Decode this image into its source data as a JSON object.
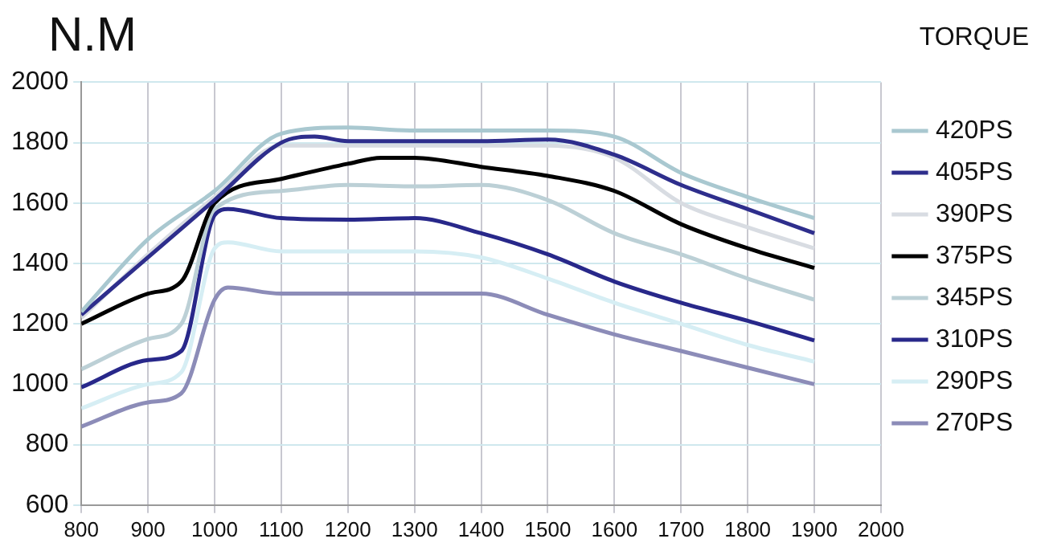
{
  "chart_data": {
    "type": "line",
    "title": "TORQUE",
    "ylabel": "N.M",
    "xlim": [
      800,
      2000
    ],
    "xticks": [
      800,
      900,
      1000,
      1100,
      1200,
      1300,
      1400,
      1500,
      1600,
      1700,
      1800,
      1900,
      2000
    ],
    "ylim": [
      600,
      2000
    ],
    "yticks": [
      600,
      800,
      1000,
      1200,
      1400,
      1600,
      1800,
      2000
    ],
    "grid": true,
    "legend": "right",
    "marker": "none",
    "line_style": "solid",
    "series": [
      {
        "name": "420PS",
        "color": "#a9c8d0",
        "x": [
          800,
          900,
          1000,
          1100,
          1200,
          1300,
          1400,
          1500,
          1600,
          1700,
          1800,
          1900
        ],
        "values": [
          1240,
          1480,
          1640,
          1830,
          1850,
          1840,
          1840,
          1840,
          1820,
          1700,
          1620,
          1550
        ]
      },
      {
        "name": "405PS",
        "color": "#2e2e8c",
        "x": [
          800,
          900,
          1000,
          1100,
          1150,
          1200,
          1300,
          1400,
          1500,
          1600,
          1700,
          1800,
          1900
        ],
        "values": [
          1230,
          1420,
          1610,
          1800,
          1820,
          1805,
          1805,
          1805,
          1810,
          1760,
          1660,
          1580,
          1500
        ]
      },
      {
        "name": "390PS",
        "color": "#d8dce2",
        "x": [
          800,
          900,
          1000,
          1100,
          1200,
          1300,
          1400,
          1500,
          1600,
          1700,
          1800,
          1900
        ],
        "values": [
          1220,
          1430,
          1620,
          1790,
          1790,
          1790,
          1790,
          1790,
          1750,
          1600,
          1520,
          1450
        ]
      },
      {
        "name": "375PS",
        "color": "#000000",
        "x": [
          800,
          900,
          950,
          1000,
          1100,
          1200,
          1250,
          1300,
          1400,
          1500,
          1600,
          1700,
          1800,
          1900
        ],
        "values": [
          1200,
          1300,
          1340,
          1600,
          1680,
          1730,
          1750,
          1750,
          1720,
          1690,
          1640,
          1530,
          1450,
          1385
        ]
      },
      {
        "name": "345PS",
        "color": "#bcd0d6",
        "x": [
          800,
          900,
          950,
          1000,
          1100,
          1200,
          1300,
          1400,
          1500,
          1600,
          1700,
          1800,
          1900
        ],
        "values": [
          1050,
          1150,
          1200,
          1580,
          1640,
          1660,
          1655,
          1660,
          1610,
          1500,
          1430,
          1350,
          1280
        ]
      },
      {
        "name": "310PS",
        "color": "#28288a",
        "x": [
          800,
          900,
          950,
          1000,
          1020,
          1100,
          1200,
          1300,
          1400,
          1500,
          1600,
          1700,
          1800,
          1900
        ],
        "values": [
          990,
          1080,
          1110,
          1560,
          1580,
          1550,
          1545,
          1550,
          1500,
          1430,
          1340,
          1270,
          1210,
          1145
        ]
      },
      {
        "name": "290PS",
        "color": "#d6eef4",
        "x": [
          800,
          900,
          950,
          1000,
          1020,
          1100,
          1200,
          1300,
          1400,
          1500,
          1600,
          1700,
          1800,
          1900
        ],
        "values": [
          920,
          1000,
          1040,
          1450,
          1470,
          1440,
          1440,
          1440,
          1420,
          1350,
          1270,
          1200,
          1130,
          1075
        ]
      },
      {
        "name": "270PS",
        "color": "#8c8cb8",
        "x": [
          800,
          900,
          950,
          1000,
          1020,
          1100,
          1200,
          1300,
          1400,
          1500,
          1600,
          1700,
          1800,
          1900
        ],
        "values": [
          860,
          940,
          970,
          1280,
          1320,
          1300,
          1300,
          1300,
          1300,
          1230,
          1165,
          1110,
          1055,
          1000
        ]
      }
    ]
  }
}
